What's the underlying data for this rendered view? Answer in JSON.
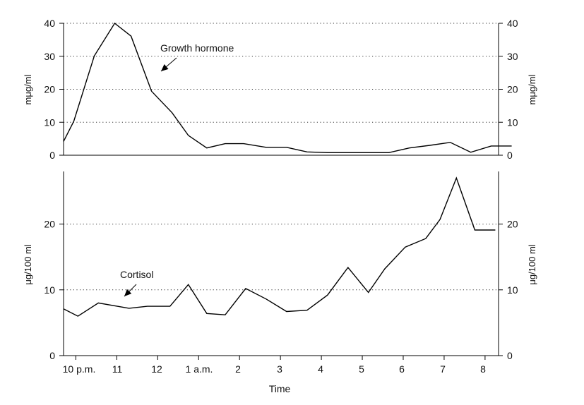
{
  "chart_data": [
    {
      "type": "line",
      "annotation": "Growth hormone",
      "ylabel": "mμg/ml",
      "ylim": [
        0,
        40
      ],
      "yticks": [
        0,
        10,
        20,
        30,
        40
      ],
      "grid": "horizontal dotted",
      "x_hours": [
        0,
        0.25,
        0.75,
        1.25,
        1.65,
        2.15,
        2.65,
        3.05,
        3.5,
        3.95,
        4.4,
        4.95,
        5.45,
        5.95,
        6.45,
        6.95,
        7.45,
        7.95,
        8.45,
        8.95,
        9.45,
        9.95,
        10.45,
        10.95
      ],
      "values": [
        4.2,
        10.3,
        30.1,
        40.0,
        36.1,
        19.4,
        12.9,
        6.0,
        2.2,
        3.5,
        3.5,
        2.4,
        2.4,
        1.0,
        0.8,
        0.8,
        0.8,
        0.8,
        2.2,
        3.0,
        3.9,
        0.9,
        2.8,
        2.8
      ]
    },
    {
      "type": "line",
      "annotation": "Cortisol",
      "ylabel": "μg/100 ml",
      "ylim": [
        0,
        28
      ],
      "yticks": [
        0,
        10,
        20
      ],
      "grid": "horizontal dotted",
      "x_hours": [
        0,
        0.35,
        0.85,
        1.6,
        2.05,
        2.6,
        3.05,
        3.5,
        3.95,
        4.45,
        4.95,
        5.45,
        5.95,
        6.45,
        6.95,
        7.45,
        7.85,
        8.35,
        8.85,
        9.2,
        9.6,
        10.05,
        10.55
      ],
      "values": [
        7.1,
        6.0,
        8.0,
        7.2,
        7.5,
        7.5,
        10.8,
        6.4,
        6.2,
        10.2,
        8.6,
        6.7,
        6.9,
        9.2,
        13.4,
        9.6,
        13.2,
        16.5,
        17.8,
        20.7,
        27.0,
        19.1,
        19.1
      ]
    }
  ],
  "x_axis": {
    "label": "Time",
    "tick_labels": [
      "10 p.m.",
      "11",
      "12",
      "1 a.m.",
      "2",
      "3",
      "4",
      "5",
      "6",
      "7",
      "8"
    ]
  }
}
